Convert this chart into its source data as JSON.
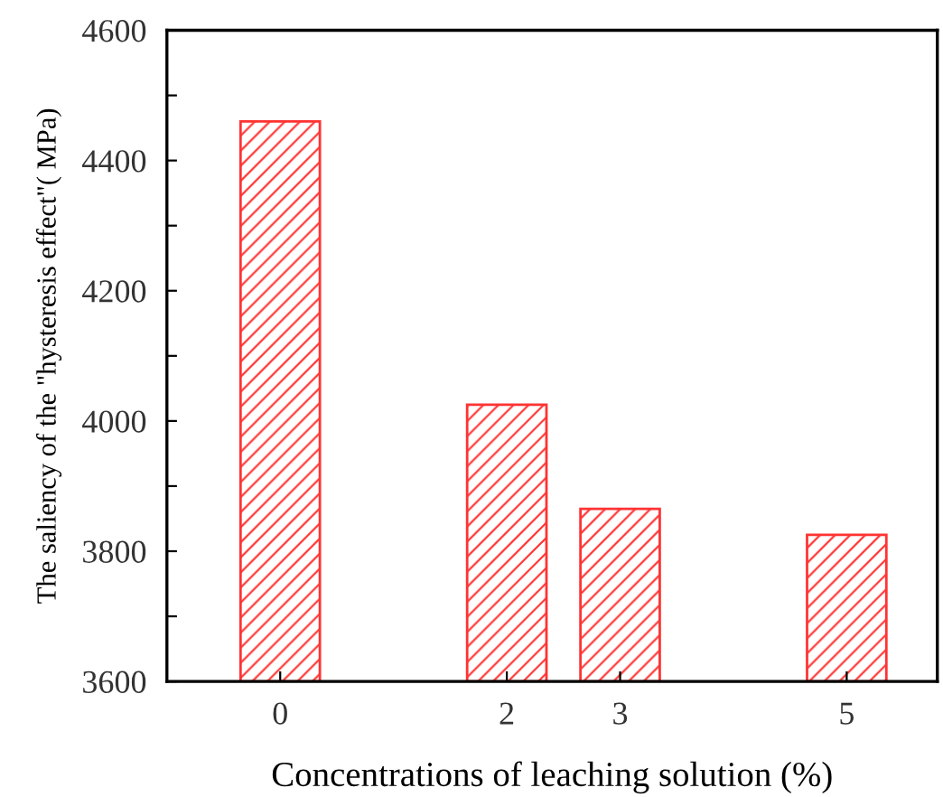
{
  "chart_data": {
    "type": "bar",
    "xlabel": "Concentrations of leaching solution (%)",
    "ylabel": "The saliency of the \"hysteresis effect\"( MPa)",
    "x": [
      0,
      2,
      3,
      5
    ],
    "values": [
      4460,
      4025,
      3865,
      3825
    ],
    "color": "#ff3333",
    "xlim": [
      -1,
      5.8
    ],
    "xticks": [
      0,
      2,
      3,
      5
    ],
    "ylim": [
      3600,
      4600
    ],
    "yticks": [
      3600,
      {
        "value": 3700,
        "label": null
      },
      3800,
      {
        "value": 3900,
        "label": null
      },
      4000,
      {
        "value": 4100,
        "label": null
      },
      4200,
      {
        "value": 4300,
        "label": null
      },
      4400,
      {
        "value": 4500,
        "label": null
      },
      4600
    ],
    "grid": false,
    "legend": false
  }
}
